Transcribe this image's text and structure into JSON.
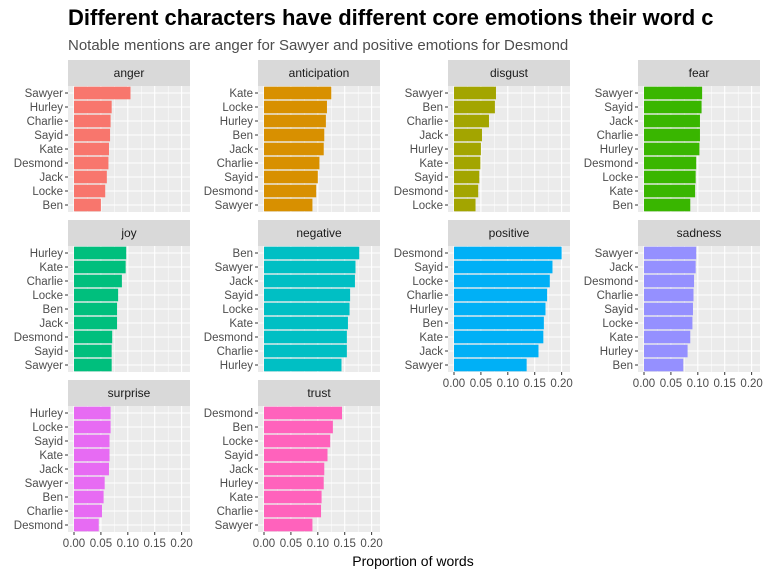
{
  "chart_data": {
    "type": "bar",
    "orientation": "horizontal",
    "faceted": true,
    "title": "Different characters have different core emotions their word c",
    "subtitle": "Notable mentions are anger for Sawyer and positive emotions for Desmond",
    "xlabel": "Proportion of words",
    "ylabel": "",
    "xlim": [
      0,
      0.21
    ],
    "xticks": [
      "0.00",
      "0.05",
      "0.10",
      "0.15",
      "0.20"
    ],
    "grid": true,
    "legend": "none",
    "panels": [
      {
        "name": "anger",
        "color": "#F8766D",
        "categories": [
          "Sawyer",
          "Hurley",
          "Charlie",
          "Sayid",
          "Kate",
          "Desmond",
          "Jack",
          "Locke",
          "Ben"
        ],
        "values": [
          0.105,
          0.07,
          0.068,
          0.067,
          0.065,
          0.064,
          0.061,
          0.058,
          0.05
        ]
      },
      {
        "name": "anticipation",
        "color": "#D89000",
        "categories": [
          "Kate",
          "Locke",
          "Hurley",
          "Ben",
          "Jack",
          "Charlie",
          "Sayid",
          "Desmond",
          "Sawyer"
        ],
        "values": [
          0.125,
          0.117,
          0.115,
          0.112,
          0.111,
          0.103,
          0.1,
          0.097,
          0.09
        ]
      },
      {
        "name": "disgust",
        "color": "#A3A500",
        "categories": [
          "Sawyer",
          "Ben",
          "Charlie",
          "Jack",
          "Hurley",
          "Kate",
          "Sayid",
          "Desmond",
          "Locke"
        ],
        "values": [
          0.078,
          0.076,
          0.065,
          0.052,
          0.05,
          0.049,
          0.047,
          0.045,
          0.04
        ]
      },
      {
        "name": "fear",
        "color": "#39B600",
        "categories": [
          "Sawyer",
          "Sayid",
          "Jack",
          "Charlie",
          "Hurley",
          "Desmond",
          "Locke",
          "Kate",
          "Ben"
        ],
        "values": [
          0.108,
          0.107,
          0.104,
          0.104,
          0.103,
          0.097,
          0.096,
          0.095,
          0.086
        ]
      },
      {
        "name": "joy",
        "color": "#00BF7D",
        "categories": [
          "Hurley",
          "Kate",
          "Charlie",
          "Locke",
          "Ben",
          "Jack",
          "Desmond",
          "Sayid",
          "Sawyer"
        ],
        "values": [
          0.097,
          0.096,
          0.089,
          0.082,
          0.08,
          0.08,
          0.071,
          0.07,
          0.07
        ]
      },
      {
        "name": "negative",
        "color": "#00BFC4",
        "categories": [
          "Ben",
          "Sawyer",
          "Jack",
          "Sayid",
          "Locke",
          "Kate",
          "Desmond",
          "Charlie",
          "Hurley"
        ],
        "values": [
          0.177,
          0.17,
          0.169,
          0.16,
          0.159,
          0.156,
          0.154,
          0.154,
          0.144
        ]
      },
      {
        "name": "positive",
        "color": "#00B0F6",
        "categories": [
          "Desmond",
          "Sayid",
          "Locke",
          "Charlie",
          "Hurley",
          "Ben",
          "Kate",
          "Jack",
          "Sawyer"
        ],
        "values": [
          0.2,
          0.183,
          0.178,
          0.173,
          0.17,
          0.167,
          0.166,
          0.157,
          0.135
        ]
      },
      {
        "name": "sadness",
        "color": "#9590FF",
        "categories": [
          "Sawyer",
          "Jack",
          "Desmond",
          "Charlie",
          "Sayid",
          "Locke",
          "Kate",
          "Hurley",
          "Ben"
        ],
        "values": [
          0.097,
          0.096,
          0.093,
          0.092,
          0.091,
          0.09,
          0.086,
          0.081,
          0.073
        ]
      },
      {
        "name": "surprise",
        "color": "#E76BF3",
        "categories": [
          "Hurley",
          "Locke",
          "Sayid",
          "Kate",
          "Jack",
          "Sawyer",
          "Ben",
          "Charlie",
          "Desmond"
        ],
        "values": [
          0.068,
          0.068,
          0.066,
          0.066,
          0.065,
          0.057,
          0.055,
          0.052,
          0.046
        ]
      },
      {
        "name": "trust",
        "color": "#FF62BC",
        "categories": [
          "Desmond",
          "Ben",
          "Locke",
          "Sayid",
          "Jack",
          "Hurley",
          "Kate",
          "Charlie",
          "Sawyer"
        ],
        "values": [
          0.145,
          0.128,
          0.123,
          0.118,
          0.112,
          0.111,
          0.107,
          0.106,
          0.09
        ]
      }
    ]
  }
}
